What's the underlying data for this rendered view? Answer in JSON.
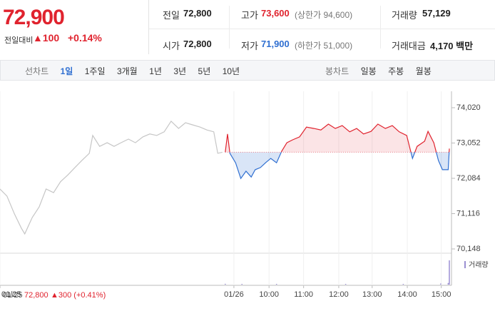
{
  "header": {
    "price": "72,900",
    "change_label": "전일대비",
    "change": "▲100",
    "change_rate": "+0.14%",
    "stats": [
      {
        "label": "전일",
        "value": "72,800"
      },
      {
        "label": "고가",
        "value": "73,600",
        "note": "(상한가 94,600)"
      },
      {
        "label": "거래량",
        "value": "57,129"
      },
      {
        "label": "시가",
        "value": "72,800"
      },
      {
        "label": "저가",
        "value": "71,900",
        "note": "(하한가 51,000)"
      },
      {
        "label": "거래대금",
        "value": "4,170 백만"
      }
    ]
  },
  "tabs": {
    "line": {
      "label": "선차트",
      "items": [
        "1일",
        "1주일",
        "3개월",
        "1년",
        "3년",
        "5년",
        "10년"
      ]
    },
    "candle": {
      "label": "봉차트",
      "items": [
        "일봉",
        "주봉",
        "월봉"
      ]
    }
  },
  "summary": {
    "date": "01/25",
    "price": "72,800",
    "change": "▲300 (+0.41%)"
  },
  "chart_data": {
    "type": "line",
    "xlim": [
      0,
      780
    ],
    "ylim": [
      70148,
      74020
    ],
    "xticks": [
      {
        "value": 0,
        "label": "01/25"
      },
      {
        "value": 406,
        "label": "01/26"
      },
      {
        "value": 467,
        "label": "10:00"
      },
      {
        "value": 527,
        "label": "11:00"
      },
      {
        "value": 588,
        "label": "12:00"
      },
      {
        "value": 646,
        "label": "13:00"
      },
      {
        "value": 707,
        "label": "14:00"
      },
      {
        "value": 766,
        "label": "15:00"
      }
    ],
    "yticks": [
      {
        "value": 74020,
        "label": "74,020"
      },
      {
        "value": 73052,
        "label": "73,052"
      },
      {
        "value": 72084,
        "label": "72,084"
      },
      {
        "value": 71116,
        "label": "71,116"
      },
      {
        "value": 70148,
        "label": "70,148"
      }
    ],
    "baseline": 72800,
    "series": [
      {
        "color": "#c6c6c6",
        "x": [
          0,
          12,
          25,
          37,
          43,
          56,
          68,
          80,
          93,
          105,
          118,
          130,
          142,
          155,
          161,
          173,
          186,
          198,
          210,
          223,
          235,
          248,
          260,
          272,
          285,
          297,
          310,
          322,
          334,
          347,
          359,
          371,
          378,
          386
        ],
        "values": [
          71790,
          71600,
          71110,
          70720,
          70560,
          71010,
          71300,
          71790,
          71690,
          71990,
          72180,
          72380,
          72570,
          72770,
          73260,
          72960,
          73060,
          72960,
          73060,
          73160,
          73060,
          73220,
          73300,
          73260,
          73360,
          73650,
          73450,
          73610,
          73550,
          73490,
          73410,
          73360,
          72770,
          72800
        ]
      },
      {
        "color": "#e0232e",
        "down_color": "#2f6fd1",
        "x": [
          391,
          395,
          399,
          409,
          418,
          427,
          436,
          443,
          452,
          461,
          470,
          480,
          489,
          498,
          508,
          520,
          532,
          545,
          557,
          570,
          582,
          594,
          607,
          619,
          631,
          644,
          656,
          669,
          681,
          693,
          706,
          716,
          724,
          737,
          743,
          753,
          761,
          768,
          778,
          780
        ],
        "values": [
          72800,
          73300,
          72770,
          72510,
          72080,
          72280,
          72120,
          72320,
          72380,
          72510,
          72630,
          72510,
          72830,
          73060,
          73140,
          73220,
          73490,
          73450,
          73410,
          73570,
          73450,
          73530,
          73360,
          73450,
          73300,
          73370,
          73570,
          73450,
          73530,
          73360,
          73260,
          72630,
          72960,
          73100,
          73370,
          73060,
          72570,
          72320,
          72320,
          72900
        ]
      }
    ],
    "volume": {
      "name": "거래량",
      "color": "#9a8fd2",
      "x": [
        391,
        420,
        480,
        600,
        700,
        765,
        778,
        780
      ],
      "values": [
        300,
        120,
        80,
        90,
        150,
        400,
        600,
        9000
      ]
    }
  }
}
